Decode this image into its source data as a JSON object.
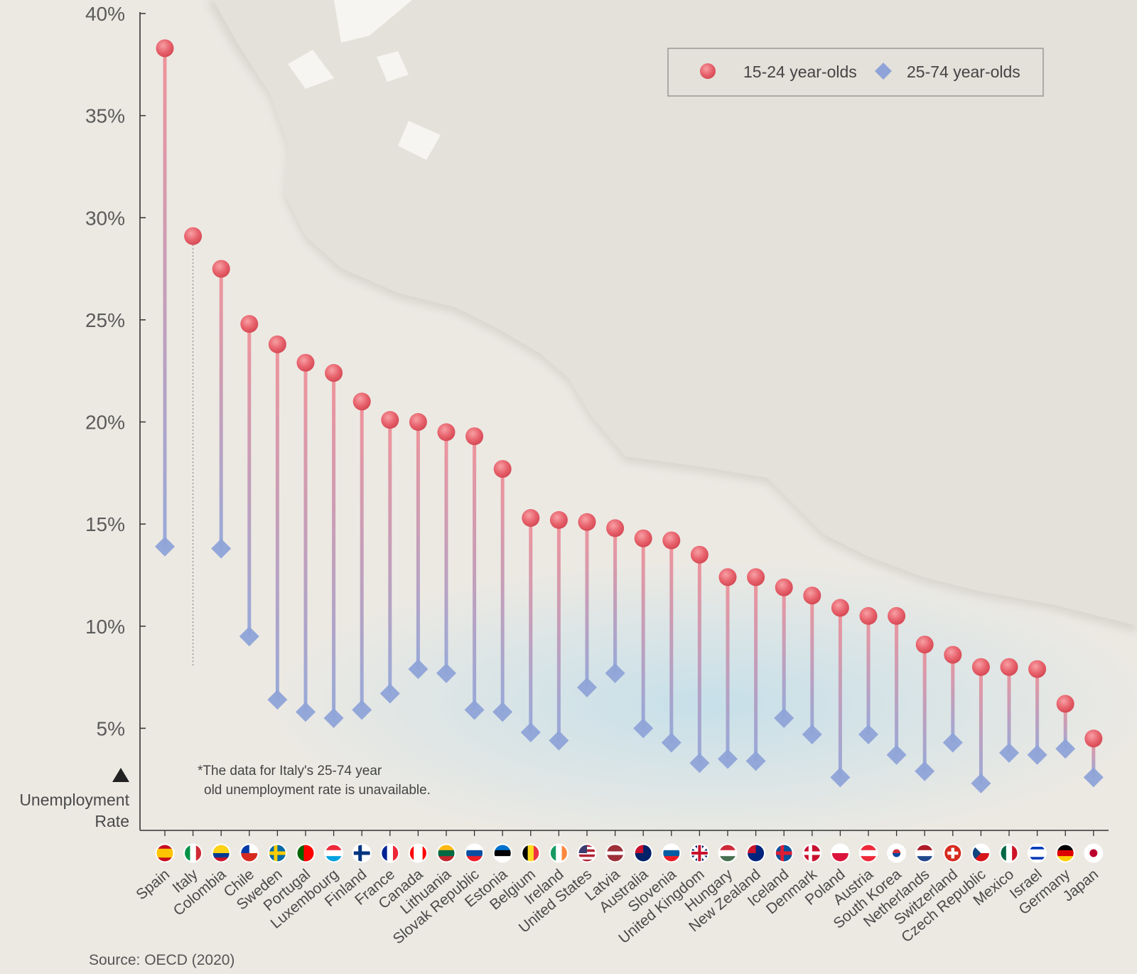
{
  "chart_data": {
    "type": "dot-range",
    "ylabel_lines": [
      "Unemployment",
      "Rate"
    ],
    "ylim": [
      0,
      40
    ],
    "yticks": [
      "5%",
      "10%",
      "15%",
      "20%",
      "25%",
      "30%",
      "35%",
      "40%"
    ],
    "categories": [
      "Spain",
      "Italy",
      "Colombia",
      "Chile",
      "Sweden",
      "Portugal",
      "Luxembourg",
      "Finland",
      "France",
      "Canada",
      "Lithuania",
      "Slovak Republic",
      "Estonia",
      "Belgium",
      "Ireland",
      "United States",
      "Latvia",
      "Australia",
      "Slovenia",
      "United Kingdom",
      "Hungary",
      "New Zealand",
      "Iceland",
      "Denmark",
      "Poland",
      "Austria",
      "South Korea",
      "Netherlands",
      "Switzerland",
      "Czech Republic",
      "Mexico",
      "Israel",
      "Germany",
      "Japan"
    ],
    "series": [
      {
        "name": "15-24 year-olds",
        "marker": "circle",
        "color": "#e8636d",
        "values": [
          38.3,
          29.1,
          27.5,
          24.8,
          23.8,
          22.9,
          22.4,
          21.0,
          20.1,
          20.0,
          19.5,
          19.3,
          17.7,
          15.3,
          15.2,
          15.1,
          14.8,
          14.3,
          14.2,
          13.5,
          12.4,
          12.4,
          11.9,
          11.5,
          10.9,
          10.5,
          10.5,
          9.1,
          8.6,
          8.0,
          8.0,
          7.9,
          6.2,
          4.5
        ]
      },
      {
        "name": "25-74 year-olds",
        "marker": "diamond",
        "color": "#8fa3d8",
        "values": [
          13.9,
          null,
          13.8,
          9.5,
          6.4,
          5.8,
          5.5,
          5.9,
          6.7,
          7.9,
          7.7,
          5.9,
          5.8,
          4.8,
          4.4,
          7.0,
          7.7,
          5.0,
          4.3,
          3.3,
          3.5,
          3.4,
          5.5,
          4.7,
          2.6,
          4.7,
          3.7,
          2.9,
          4.3,
          2.3,
          3.8,
          3.7,
          4.0,
          2.6
        ]
      }
    ],
    "note_lines": [
      "*The data for Italy's 25-74 year",
      "old unemployment rate is unavailable."
    ],
    "source": "Source: OECD (2020)",
    "flags": {
      "Spain": {
        "type": "h",
        "colors": [
          "#c60b1e",
          "#ffc400",
          "#c60b1e"
        ],
        "weights": [
          1,
          2,
          1
        ]
      },
      "Italy": {
        "type": "v",
        "colors": [
          "#009246",
          "#ffffff",
          "#ce2b37"
        ]
      },
      "Colombia": {
        "type": "h",
        "colors": [
          "#fcd116",
          "#003893",
          "#ce1126"
        ],
        "weights": [
          2,
          1,
          1
        ]
      },
      "Chile": {
        "type": "h",
        "colors": [
          "#ffffff",
          "#d52b1e"
        ],
        "canton": "#0039a6"
      },
      "Sweden": {
        "type": "nordic",
        "colors": [
          "#006aa7",
          "#fecc00"
        ]
      },
      "Portugal": {
        "type": "v",
        "colors": [
          "#006600",
          "#ff0000"
        ],
        "weights": [
          2,
          3
        ]
      },
      "Luxembourg": {
        "type": "h",
        "colors": [
          "#ed2939",
          "#ffffff",
          "#00a1de"
        ]
      },
      "Finland": {
        "type": "nordic",
        "colors": [
          "#ffffff",
          "#003580"
        ]
      },
      "France": {
        "type": "v",
        "colors": [
          "#002395",
          "#ffffff",
          "#ed2939"
        ]
      },
      "Canada": {
        "type": "v",
        "colors": [
          "#ff0000",
          "#ffffff",
          "#ff0000"
        ],
        "weights": [
          1,
          2,
          1
        ]
      },
      "Lithuania": {
        "type": "h",
        "colors": [
          "#fdb913",
          "#006a44",
          "#c1272d"
        ]
      },
      "Slovak Republic": {
        "type": "h",
        "colors": [
          "#ffffff",
          "#0b4ea2",
          "#ee1c25"
        ]
      },
      "Estonia": {
        "type": "h",
        "colors": [
          "#0072ce",
          "#000000",
          "#ffffff"
        ]
      },
      "Belgium": {
        "type": "v",
        "colors": [
          "#000000",
          "#fdda24",
          "#ef3340"
        ]
      },
      "Ireland": {
        "type": "v",
        "colors": [
          "#169b62",
          "#ffffff",
          "#ff883e"
        ]
      },
      "United States": {
        "type": "h",
        "colors": [
          "#b22234",
          "#ffffff",
          "#b22234",
          "#ffffff",
          "#b22234",
          "#ffffff",
          "#b22234"
        ],
        "canton": "#3c3b6e"
      },
      "Latvia": {
        "type": "h",
        "colors": [
          "#9e3039",
          "#ffffff",
          "#9e3039"
        ],
        "weights": [
          2,
          1,
          2
        ]
      },
      "Australia": {
        "type": "solid",
        "colors": [
          "#012169"
        ],
        "canton": "#c8102e"
      },
      "Slovenia": {
        "type": "h",
        "colors": [
          "#ffffff",
          "#005da4",
          "#ed1c24"
        ]
      },
      "United Kingdom": {
        "type": "uk",
        "colors": [
          "#012169",
          "#ffffff",
          "#c8102e"
        ]
      },
      "Hungary": {
        "type": "h",
        "colors": [
          "#ce2939",
          "#ffffff",
          "#477050"
        ]
      },
      "New Zealand": {
        "type": "solid",
        "colors": [
          "#00247d"
        ],
        "canton": "#cc142b"
      },
      "Iceland": {
        "type": "nordic",
        "colors": [
          "#02529c",
          "#dc1e35"
        ]
      },
      "Denmark": {
        "type": "nordic",
        "colors": [
          "#c8102e",
          "#ffffff"
        ]
      },
      "Poland": {
        "type": "h",
        "colors": [
          "#ffffff",
          "#dc143c"
        ]
      },
      "Austria": {
        "type": "h",
        "colors": [
          "#ed2939",
          "#ffffff",
          "#ed2939"
        ]
      },
      "South Korea": {
        "type": "dot",
        "colors": [
          "#ffffff",
          "#cd2e3a",
          "#0047a0"
        ]
      },
      "Netherlands": {
        "type": "h",
        "colors": [
          "#ae1c28",
          "#ffffff",
          "#21468b"
        ]
      },
      "Switzerland": {
        "type": "cross",
        "colors": [
          "#d52b1e",
          "#ffffff"
        ]
      },
      "Czech Republic": {
        "type": "h",
        "colors": [
          "#ffffff",
          "#d7141a"
        ],
        "triangle": "#11457e"
      },
      "Mexico": {
        "type": "v",
        "colors": [
          "#006847",
          "#ffffff",
          "#ce1126"
        ]
      },
      "Israel": {
        "type": "h",
        "colors": [
          "#ffffff",
          "#0038b8",
          "#ffffff",
          "#0038b8",
          "#ffffff"
        ],
        "weights": [
          1,
          1,
          3,
          1,
          1
        ]
      },
      "Germany": {
        "type": "h",
        "colors": [
          "#000000",
          "#dd0000",
          "#ffce00"
        ]
      },
      "Japan": {
        "type": "dot",
        "colors": [
          "#ffffff",
          "#bc002d"
        ]
      }
    },
    "grid": false,
    "legend_position": "top-right"
  }
}
